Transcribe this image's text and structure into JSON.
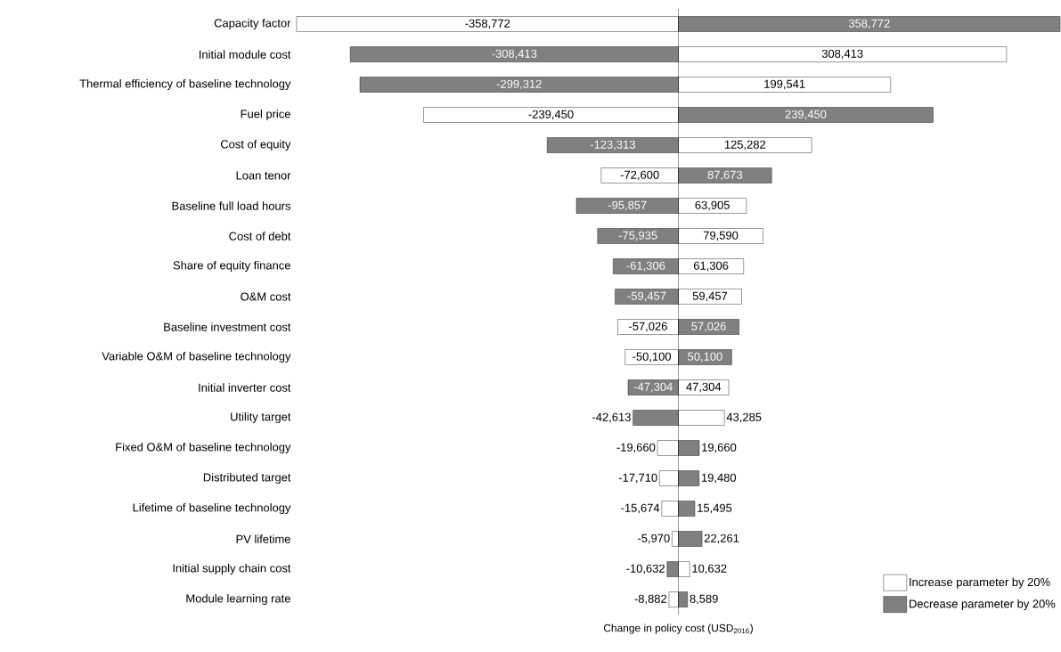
{
  "chart_data": {
    "type": "bar",
    "orientation": "horizontal",
    "stacked": true,
    "xlabel": "Change in policy cost (USD$_{2016}$)",
    "legend": "bottom right",
    "categories": [
      "Capacity factor",
      "Initial module cost",
      "Thermal efficiency of baseline technology",
      "Fuel price",
      "Cost of equity",
      "Loan tenor",
      "Baseline full load hours",
      "Cost of debt",
      "Share of equity finance",
      "O&M cost",
      "Baseline investment cost",
      "Variable O&M of baseline technology",
      "Initial inverter cost",
      "Utility target",
      "Fixed O&M of baseline technology",
      "Distributed target",
      "Lifetime of baseline technology",
      "PV lifetime",
      "Initial supply chain cost",
      "Module learning rate"
    ],
    "series": [
      {
        "name": "Increase parameter by 20%",
        "color": "#ffffff",
        "values": [
          -358772,
          308413,
          199541,
          -239450,
          125282,
          -72600,
          63905,
          79590,
          61306,
          59457,
          -57026,
          -50100,
          47304,
          43285,
          -19660,
          -17710,
          -15674,
          -5970,
          10632,
          -8882
        ],
        "value_labels": [
          "-358,772",
          "308,413",
          "199,541",
          "-239,450",
          "125,282",
          "-72,600",
          "63,905",
          "79,590",
          "61,306",
          "59,457",
          "-57,026",
          "-50,100",
          "47,304",
          "43,285",
          "-19,660",
          "-17,710",
          "-15,674",
          "-5,970",
          "10,632",
          "-8,882"
        ]
      },
      {
        "name": "Decrease parameter by 20%",
        "color": "#808080",
        "values": [
          358772,
          -308413,
          -299312,
          239450,
          -123313,
          87673,
          -95857,
          -75935,
          -61306,
          -59457,
          57026,
          50100,
          -47304,
          -42613,
          19660,
          19480,
          15495,
          22261,
          -10632,
          8589
        ],
        "value_labels": [
          "358,772",
          "-308,413",
          "-299,312",
          "239,450",
          "-123,313",
          "87,673",
          "-95,857",
          "-75,935",
          "-61,306",
          "-59,457",
          "57,026",
          "50,100",
          "-47,304",
          "-42,613",
          "19,660",
          "19,480",
          "15,495",
          "22,261",
          "-10,632",
          "8,589"
        ]
      }
    ]
  }
}
